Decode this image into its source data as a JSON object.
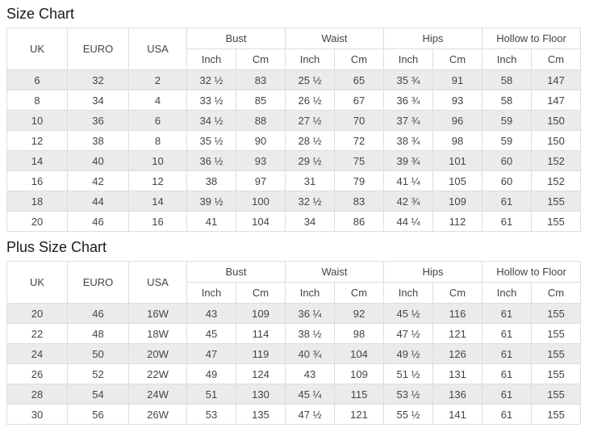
{
  "colors": {
    "stripe": "#ebebeb",
    "border": "#dddddd",
    "text": "#444444",
    "title": "#1a1a1a",
    "background": "#ffffff"
  },
  "chart_data": [
    {
      "type": "table",
      "title": "Size Chart",
      "header": {
        "plain": [
          "UK",
          "EURO",
          "USA"
        ],
        "groups": [
          "Bust",
          "Waist",
          "Hips",
          "Hollow to Floor"
        ],
        "units": [
          "Inch",
          "Cm"
        ]
      },
      "columns": [
        "UK",
        "EURO",
        "USA",
        "Bust Inch",
        "Bust Cm",
        "Waist Inch",
        "Waist Cm",
        "Hips Inch",
        "Hips Cm",
        "Hollow to Floor Inch",
        "Hollow to Floor Cm"
      ],
      "rows": [
        [
          "6",
          "32",
          "2",
          "32 ½",
          "83",
          "25 ½",
          "65",
          "35 ¾",
          "91",
          "58",
          "147"
        ],
        [
          "8",
          "34",
          "4",
          "33 ½",
          "85",
          "26 ½",
          "67",
          "36 ¾",
          "93",
          "58",
          "147"
        ],
        [
          "10",
          "36",
          "6",
          "34 ½",
          "88",
          "27 ½",
          "70",
          "37 ¾",
          "96",
          "59",
          "150"
        ],
        [
          "12",
          "38",
          "8",
          "35 ½",
          "90",
          "28 ½",
          "72",
          "38 ¾",
          "98",
          "59",
          "150"
        ],
        [
          "14",
          "40",
          "10",
          "36 ½",
          "93",
          "29 ½",
          "75",
          "39 ¾",
          "101",
          "60",
          "152"
        ],
        [
          "16",
          "42",
          "12",
          "38",
          "97",
          "31",
          "79",
          "41 ¼",
          "105",
          "60",
          "152"
        ],
        [
          "18",
          "44",
          "14",
          "39 ½",
          "100",
          "32 ½",
          "83",
          "42 ¾",
          "109",
          "61",
          "155"
        ],
        [
          "20",
          "46",
          "16",
          "41",
          "104",
          "34",
          "86",
          "44 ¼",
          "112",
          "61",
          "155"
        ]
      ]
    },
    {
      "type": "table",
      "title": "Plus Size Chart",
      "header": {
        "plain": [
          "UK",
          "EURO",
          "USA"
        ],
        "groups": [
          "Bust",
          "Waist",
          "Hips",
          "Hollow to Floor"
        ],
        "units": [
          "Inch",
          "Cm"
        ]
      },
      "columns": [
        "UK",
        "EURO",
        "USA",
        "Bust Inch",
        "Bust Cm",
        "Waist Inch",
        "Waist Cm",
        "Hips Inch",
        "Hips Cm",
        "Hollow to Floor Inch",
        "Hollow to Floor Cm"
      ],
      "rows": [
        [
          "20",
          "46",
          "16W",
          "43",
          "109",
          "36 ¼",
          "92",
          "45 ½",
          "116",
          "61",
          "155"
        ],
        [
          "22",
          "48",
          "18W",
          "45",
          "114",
          "38 ½",
          "98",
          "47 ½",
          "121",
          "61",
          "155"
        ],
        [
          "24",
          "50",
          "20W",
          "47",
          "119",
          "40 ¾",
          "104",
          "49 ½",
          "126",
          "61",
          "155"
        ],
        [
          "26",
          "52",
          "22W",
          "49",
          "124",
          "43",
          "109",
          "51 ½",
          "131",
          "61",
          "155"
        ],
        [
          "28",
          "54",
          "24W",
          "51",
          "130",
          "45 ¼",
          "115",
          "53 ½",
          "136",
          "61",
          "155"
        ],
        [
          "30",
          "56",
          "26W",
          "53",
          "135",
          "47 ½",
          "121",
          "55 ½",
          "141",
          "61",
          "155"
        ]
      ]
    }
  ]
}
